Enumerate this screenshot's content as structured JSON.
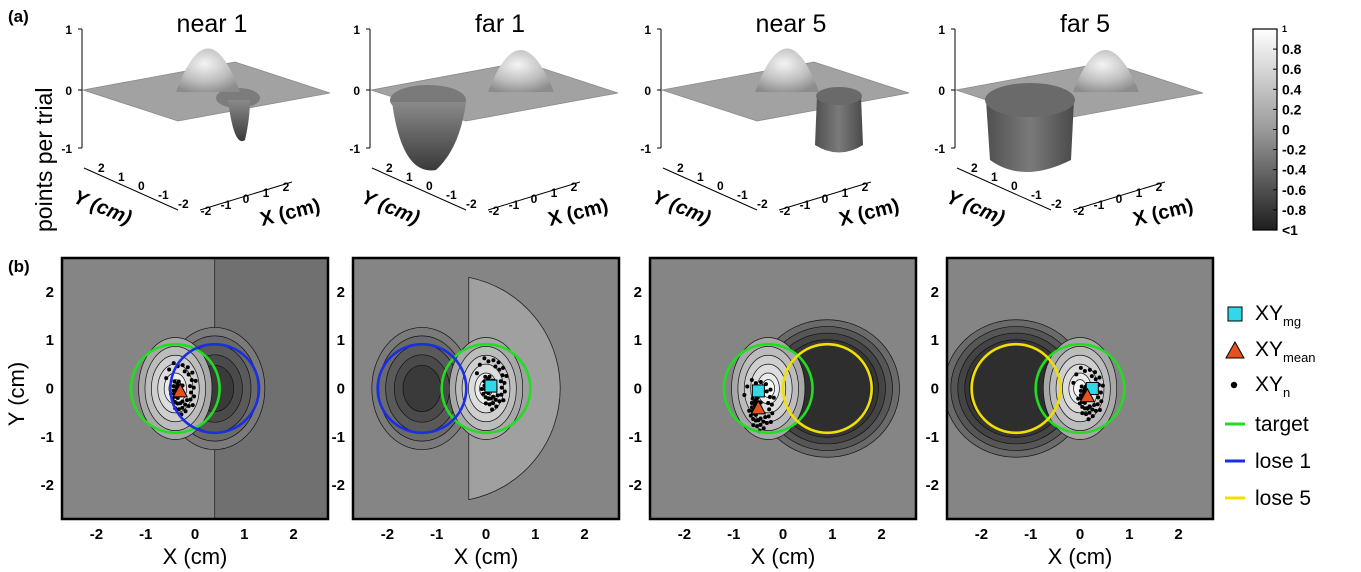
{
  "panel_labels": {
    "a": "(a)",
    "b": "(b)"
  },
  "chart_data": [
    {
      "type": "surface",
      "panel": "a",
      "zlabel": "points per trial",
      "xlabel": "X (cm)",
      "ylabel": "Y (cm)",
      "zlim": [
        -1,
        1
      ],
      "z_ticks": [
        "1",
        "0",
        "-1"
      ],
      "xy_ticks": [
        "-2",
        "-1",
        "0",
        "1",
        "2"
      ],
      "y_ticks_3d": [
        "2",
        "1",
        "0",
        "-1",
        "-2"
      ],
      "plots": [
        {
          "title": "near 1",
          "penalty": "lose 1",
          "penalty_position": "near",
          "peak": 1,
          "trough": -1
        },
        {
          "title": "far 1",
          "penalty": "lose 1",
          "penalty_position": "far",
          "peak": 1,
          "trough": -1
        },
        {
          "title": "near 5",
          "penalty": "lose 5",
          "penalty_position": "near",
          "peak": 1,
          "trough": -5
        },
        {
          "title": "far 5",
          "penalty": "lose 5",
          "penalty_position": "far",
          "peak": 1,
          "trough": -5
        }
      ],
      "colorbar": {
        "ticks": [
          "1",
          "0.8",
          "0.6",
          "0.4",
          "0.2",
          "0",
          "-0.2",
          "-0.4",
          "-0.6",
          "-0.8",
          "<1"
        ],
        "colors": [
          "#ffffff",
          "#1e1e1e"
        ]
      }
    },
    {
      "type": "contour",
      "panel": "b",
      "xlabel": "X  (cm)",
      "ylabel": "Y  (cm)",
      "xlim": [
        -2.7,
        2.7
      ],
      "ylim": [
        -2.7,
        2.7
      ],
      "x_ticks": [
        "-2",
        "-1",
        "0",
        "1",
        "2"
      ],
      "y_ticks": [
        "2",
        "1",
        "0",
        "-1",
        "-2"
      ],
      "circle_radius": 0.9,
      "plots": [
        {
          "id": "near 1",
          "target_center": [
            -0.4,
            0.0
          ],
          "penalty_center": [
            0.4,
            0.0
          ],
          "penalty": "lose 1",
          "xy_mg": null,
          "xy_mean": [
            -0.3,
            -0.05
          ]
        },
        {
          "id": "far 1",
          "target_center": [
            0.0,
            0.0
          ],
          "penalty_center": [
            -1.3,
            0.0
          ],
          "penalty": "lose 1",
          "xy_mg": [
            0.1,
            0.05
          ],
          "xy_mean": null
        },
        {
          "id": "near 5",
          "target_center": [
            -0.3,
            0.0
          ],
          "penalty_center": [
            0.9,
            0.0
          ],
          "penalty": "lose 5",
          "xy_mg": [
            -0.5,
            -0.05
          ],
          "xy_mean": [
            -0.5,
            -0.4
          ]
        },
        {
          "id": "far 5",
          "target_center": [
            0.0,
            0.0
          ],
          "penalty_center": [
            -1.3,
            0.0
          ],
          "penalty": "lose 5",
          "xy_mg": [
            0.25,
            0.0
          ],
          "xy_mean": [
            0.15,
            -0.15
          ]
        }
      ],
      "legend": [
        {
          "key": "xy_mg",
          "label": "XY",
          "sub": "mg",
          "marker": "square",
          "color": "#30d8e8"
        },
        {
          "key": "xy_mean",
          "label": "XY",
          "sub": "mean",
          "marker": "triangle",
          "color": "#e85020"
        },
        {
          "key": "xy_n",
          "label": "XY",
          "sub": "n",
          "marker": "dot",
          "color": "#000000"
        },
        {
          "key": "target",
          "label": "target",
          "marker": "line",
          "color": "#22dd22"
        },
        {
          "key": "lose1",
          "label": "lose 1",
          "marker": "line",
          "color": "#1a2ee6"
        },
        {
          "key": "lose5",
          "label": "lose 5",
          "marker": "line",
          "color": "#f0e000"
        }
      ]
    }
  ]
}
